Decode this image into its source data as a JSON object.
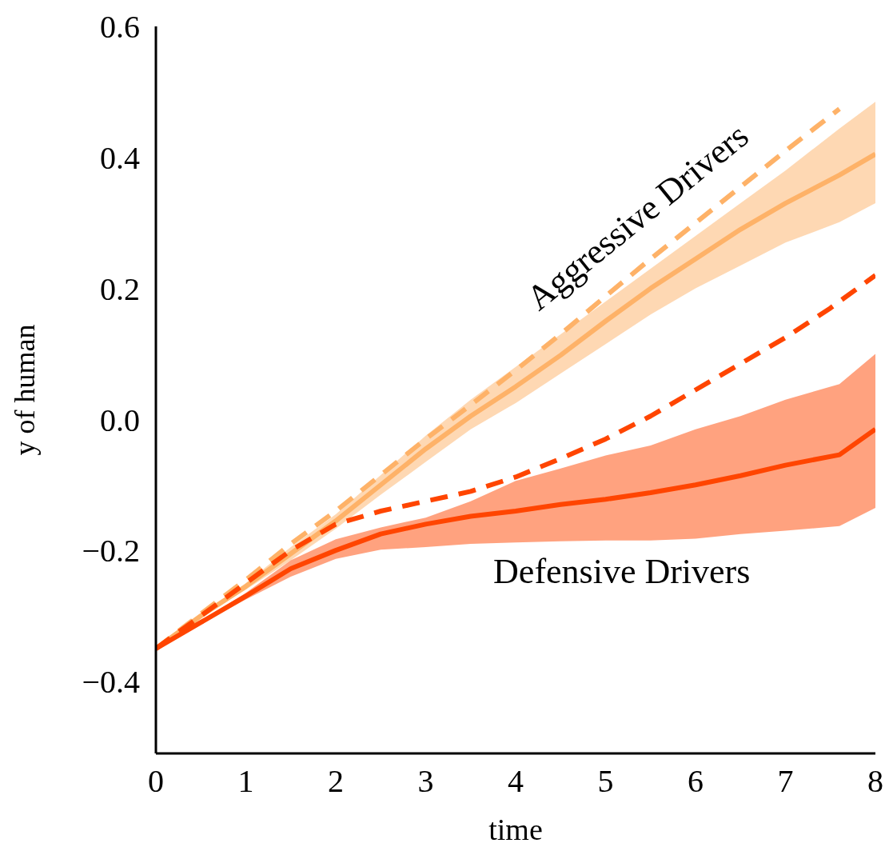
{
  "chart_data": {
    "type": "line",
    "xlabel": "time",
    "ylabel": "y of human",
    "x": [
      0,
      0.5,
      1,
      1.5,
      2,
      2.5,
      3,
      3.5,
      4,
      4.5,
      5,
      5.5,
      6,
      6.5,
      7,
      7.6,
      8
    ],
    "series": [
      {
        "name": "Aggressive Drivers",
        "color": "#feb268",
        "line_style": "solid",
        "values": [
          -0.35,
          -0.3,
          -0.255,
          -0.205,
          -0.155,
          -0.1,
          -0.045,
          0.005,
          0.05,
          0.098,
          0.15,
          0.2,
          0.245,
          0.29,
          0.33,
          0.373,
          0.405
        ],
        "lower": [
          -0.35,
          -0.302,
          -0.26,
          -0.215,
          -0.167,
          -0.115,
          -0.065,
          -0.015,
          0.025,
          0.07,
          0.115,
          0.16,
          0.2,
          0.235,
          0.27,
          0.301,
          0.33
        ],
        "upper": [
          -0.35,
          -0.298,
          -0.25,
          -0.195,
          -0.145,
          -0.085,
          -0.025,
          0.03,
          0.08,
          0.13,
          0.18,
          0.23,
          0.28,
          0.33,
          0.38,
          0.444,
          0.485
        ]
      },
      {
        "color": "#feb268",
        "line_style": "dashed",
        "x": [
          0,
          0.5,
          1,
          1.5,
          2,
          2.5,
          3,
          3.5,
          4,
          4.5,
          5,
          5.5,
          6,
          6.5,
          7,
          7.6
        ],
        "values": [
          -0.35,
          -0.297,
          -0.245,
          -0.19,
          -0.14,
          -0.085,
          -0.03,
          0.022,
          0.075,
          0.13,
          0.188,
          0.245,
          0.3,
          0.355,
          0.41,
          0.474
        ]
      },
      {
        "name": "Defensive Drivers",
        "color": "#ff4500",
        "line_style": "solid",
        "values": [
          -0.35,
          -0.31,
          -0.27,
          -0.228,
          -0.2,
          -0.175,
          -0.16,
          -0.148,
          -0.14,
          -0.13,
          -0.122,
          -0.112,
          -0.1,
          -0.086,
          -0.07,
          -0.054,
          -0.015
        ],
        "lower": [
          -0.35,
          -0.312,
          -0.275,
          -0.24,
          -0.213,
          -0.199,
          -0.195,
          -0.19,
          -0.188,
          -0.186,
          -0.185,
          -0.185,
          -0.182,
          -0.175,
          -0.17,
          -0.163,
          -0.135
        ],
        "upper": [
          -0.35,
          -0.308,
          -0.265,
          -0.215,
          -0.183,
          -0.165,
          -0.15,
          -0.125,
          -0.094,
          -0.075,
          -0.055,
          -0.04,
          -0.015,
          0.005,
          0.03,
          0.054,
          0.1
        ]
      },
      {
        "color": "#ff4500",
        "line_style": "dashed",
        "x": [
          0,
          0.5,
          1,
          1.5,
          2,
          2.5,
          3,
          3.5,
          4,
          4.5,
          5,
          5.5,
          6,
          6.5,
          7,
          7.5,
          8
        ],
        "values": [
          -0.35,
          -0.3,
          -0.25,
          -0.2,
          -0.16,
          -0.14,
          -0.125,
          -0.11,
          -0.088,
          -0.06,
          -0.03,
          0.005,
          0.045,
          0.085,
          0.125,
          0.17,
          0.22
        ]
      }
    ],
    "xlim": [
      0,
      8
    ],
    "xticks": [
      0,
      1,
      2,
      3,
      4,
      5,
      6,
      7,
      8
    ],
    "ylim": [
      -0.51,
      0.6
    ],
    "yticks": [
      {
        "value": -0.4,
        "label": "−0.4"
      },
      {
        "value": -0.2,
        "label": "−0.2"
      },
      {
        "value": 0,
        "label": "0.0"
      },
      0.2,
      0.4,
      0.6
    ]
  }
}
